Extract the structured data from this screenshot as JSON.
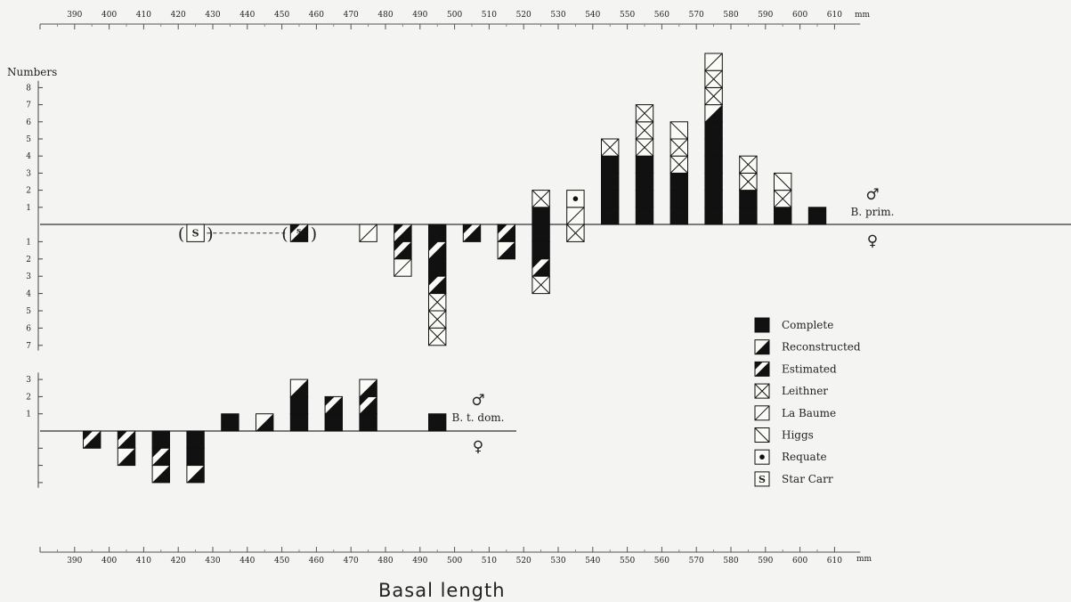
{
  "chart_data": {
    "type": "bar",
    "xlabel": "Basal length",
    "x_unit": "mm",
    "ylabel": "Numbers",
    "x_ticks": [
      390,
      400,
      410,
      420,
      430,
      440,
      450,
      460,
      470,
      480,
      490,
      500,
      510,
      520,
      530,
      540,
      550,
      560,
      570,
      580,
      590,
      600,
      610
    ],
    "xlim": [
      380,
      620
    ],
    "bin_width_mm": 10,
    "legend": [
      {
        "key": "C",
        "label": "Complete"
      },
      {
        "key": "R",
        "label": "Reconstructed"
      },
      {
        "key": "E",
        "label": "Estimated"
      },
      {
        "key": "L",
        "label": "Leithner"
      },
      {
        "key": "B",
        "label": "La Baume"
      },
      {
        "key": "H",
        "label": "Higgs"
      },
      {
        "key": "Q",
        "label": "Requate"
      },
      {
        "key": "S",
        "label": "Star Carr"
      }
    ],
    "series_codes_note": "stack order from baseline outward",
    "panels": [
      {
        "label": "B. prim.",
        "upper_symbol": "♂",
        "lower_symbol": "♀",
        "y_ticks_up": [
          1,
          2,
          3,
          4,
          5,
          6,
          7,
          8
        ],
        "y_ticks_down": [
          1,
          2,
          3,
          4,
          5,
          6,
          7
        ],
        "y_tick_labels_down": [
          "1",
          "2",
          "3",
          "4",
          "5",
          "6",
          "7"
        ],
        "males": [
          {
            "bin": 520,
            "stack": [
              "C",
              "L"
            ]
          },
          {
            "bin": 530,
            "stack": [
              "B",
              "Q"
            ]
          },
          {
            "bin": 540,
            "stack": [
              "C",
              "C",
              "C",
              "C",
              "L"
            ]
          },
          {
            "bin": 550,
            "stack": [
              "C",
              "C",
              "C",
              "C",
              "L",
              "L",
              "L"
            ]
          },
          {
            "bin": 560,
            "stack": [
              "C",
              "C",
              "C",
              "L",
              "L",
              "H"
            ]
          },
          {
            "bin": 570,
            "stack": [
              "C",
              "C",
              "C",
              "C",
              "C",
              "C",
              "R",
              "L",
              "L",
              "B"
            ]
          },
          {
            "bin": 580,
            "stack": [
              "C",
              "C",
              "L",
              "L"
            ]
          },
          {
            "bin": 590,
            "stack": [
              "C",
              "L",
              "H"
            ]
          },
          {
            "bin": 600,
            "stack": [
              "C"
            ]
          }
        ],
        "females": [
          {
            "bin": 420,
            "stack": [
              "S"
            ],
            "bracketed": true
          },
          {
            "bin": 450,
            "stack": [
              "E"
            ],
            "bracketed": true,
            "mark": "s"
          },
          {
            "bin": 470,
            "stack": [
              "B"
            ]
          },
          {
            "bin": 480,
            "stack": [
              "E",
              "E",
              "B"
            ]
          },
          {
            "bin": 490,
            "stack": [
              "C",
              "E",
              "C",
              "E",
              "L",
              "L",
              "L"
            ]
          },
          {
            "bin": 500,
            "stack": [
              "E"
            ]
          },
          {
            "bin": 510,
            "stack": [
              "E",
              "R"
            ]
          },
          {
            "bin": 520,
            "stack": [
              "C",
              "C",
              "E",
              "L"
            ]
          },
          {
            "bin": 530,
            "stack": [
              "L"
            ]
          }
        ]
      },
      {
        "label": "B. t. dom.",
        "upper_symbol": "♂",
        "lower_symbol": "♀",
        "y_ticks_up": [
          1,
          2,
          3
        ],
        "y_ticks_down": [
          1,
          2,
          3
        ],
        "males": [
          {
            "bin": 430,
            "stack": [
              "C"
            ]
          },
          {
            "bin": 440,
            "stack": [
              "R"
            ]
          },
          {
            "bin": 450,
            "stack": [
              "C",
              "C",
              "R"
            ]
          },
          {
            "bin": 460,
            "stack": [
              "C",
              "E"
            ]
          },
          {
            "bin": 470,
            "stack": [
              "C",
              "E",
              "R"
            ]
          },
          {
            "bin": 490,
            "stack": [
              "C"
            ]
          }
        ],
        "females": [
          {
            "bin": 390,
            "stack": [
              "E"
            ]
          },
          {
            "bin": 400,
            "stack": [
              "E",
              "R"
            ]
          },
          {
            "bin": 410,
            "stack": [
              "C",
              "E",
              "R"
            ]
          },
          {
            "bin": 420,
            "stack": [
              "C",
              "C",
              "R"
            ]
          }
        ]
      }
    ]
  }
}
